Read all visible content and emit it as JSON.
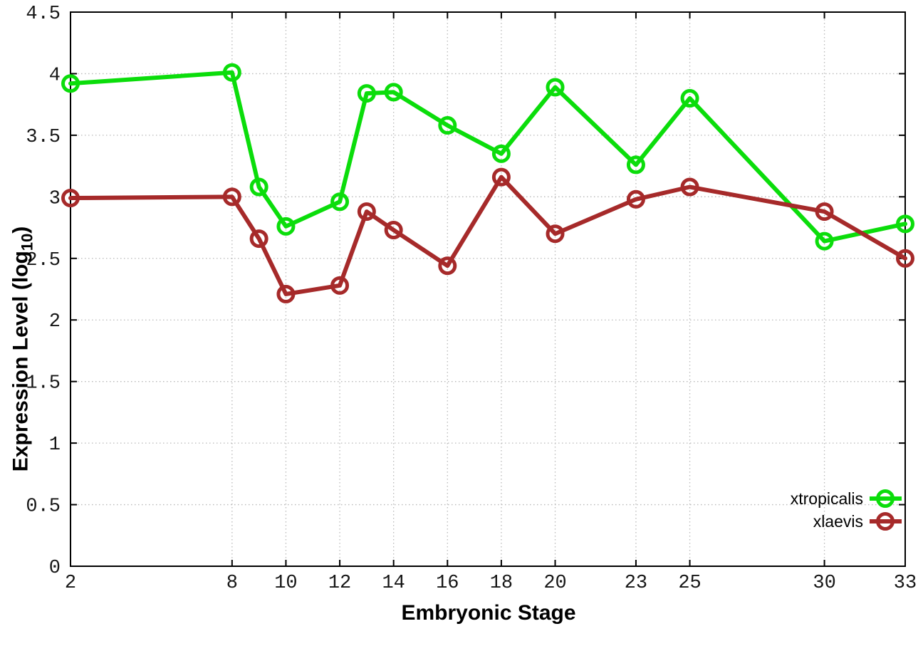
{
  "page": {
    "background": "#ffffff"
  },
  "chart_data": {
    "type": "line",
    "title": "",
    "xlabel": "Embryonic Stage",
    "ylabel": {
      "pre": "Expression Level (log",
      "sub": "10",
      "post": ")"
    },
    "xlim": [
      2,
      33
    ],
    "ylim": [
      0,
      4.5
    ],
    "grid": true,
    "xticks": {
      "values": [
        2,
        8,
        10,
        12,
        14,
        16,
        18,
        20,
        23,
        25,
        30,
        33
      ],
      "labels": [
        "2",
        "8",
        "10",
        "12",
        "14",
        "16",
        "18",
        "20",
        "23",
        "25",
        "30",
        "33"
      ]
    },
    "yticks": {
      "values": [
        0,
        0.5,
        1,
        1.5,
        2,
        2.5,
        3,
        3.5,
        4,
        4.5
      ],
      "labels": [
        "0",
        "0.5",
        "1",
        "1.5",
        "2",
        "2.5",
        "3",
        "3.5",
        "4",
        "4.5"
      ]
    },
    "x": [
      2,
      8,
      9,
      10,
      12,
      13,
      14,
      16,
      18,
      20,
      23,
      25,
      30,
      33
    ],
    "series": [
      {
        "name": "xtropicalis",
        "color": "#0bdd0b",
        "values": [
          3.92,
          4.01,
          3.08,
          2.76,
          2.96,
          3.84,
          3.85,
          3.58,
          3.35,
          3.89,
          3.26,
          3.8,
          2.64,
          2.78
        ]
      },
      {
        "name": "xlaevis",
        "color": "#a62a2a",
        "values": [
          2.99,
          3.0,
          2.66,
          2.21,
          2.28,
          2.88,
          2.73,
          2.44,
          3.16,
          2.7,
          2.98,
          3.08,
          2.88,
          2.5
        ]
      }
    ],
    "legend": {
      "position": "inside-right",
      "entries": [
        "xtropicalis",
        "xlaevis"
      ]
    },
    "colors": {
      "axis": "#000000",
      "grid": "#b9b9b9",
      "tick_label": "#161616"
    }
  }
}
